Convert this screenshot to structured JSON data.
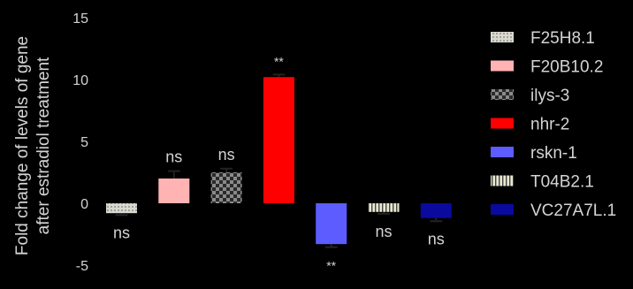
{
  "chart_data": {
    "type": "bar",
    "ylabel_line1": "Fold change of levels of gene",
    "ylabel_line2": "after estradiol treatment",
    "ylim": [
      -5,
      15
    ],
    "yticks": [
      -5,
      0,
      5,
      10,
      15
    ],
    "categories": [
      "F25H8.1",
      "F20B10.2",
      "ilys-3",
      "nhr-2",
      "rskn-1",
      "T04B2.1",
      "VC27A7L.1"
    ],
    "values": [
      -0.8,
      2.0,
      2.5,
      10.2,
      -3.3,
      -0.7,
      -1.2
    ],
    "errors": [
      0.15,
      0.6,
      0.3,
      0.2,
      0.25,
      0.15,
      0.25
    ],
    "significance": [
      "ns",
      "ns",
      "ns",
      "**",
      "**",
      "ns",
      "ns"
    ],
    "colors": [
      "#d9d9d0",
      "#ffb3b3",
      "#777777",
      "#ff0000",
      "#5c5cff",
      "#e0e0c8",
      "#0a0a9e"
    ],
    "patterns": [
      "dots",
      "solid",
      "checker",
      "solid",
      "solid",
      "stripes",
      "solid"
    ],
    "legend": [
      {
        "label": "F25H8.1"
      },
      {
        "label": "F20B10.2"
      },
      {
        "label": "ilys-3"
      },
      {
        "label": "nhr-2"
      },
      {
        "label": "rskn-1"
      },
      {
        "label": "T04B2.1"
      },
      {
        "label": "VC27A7L.1"
      }
    ]
  }
}
